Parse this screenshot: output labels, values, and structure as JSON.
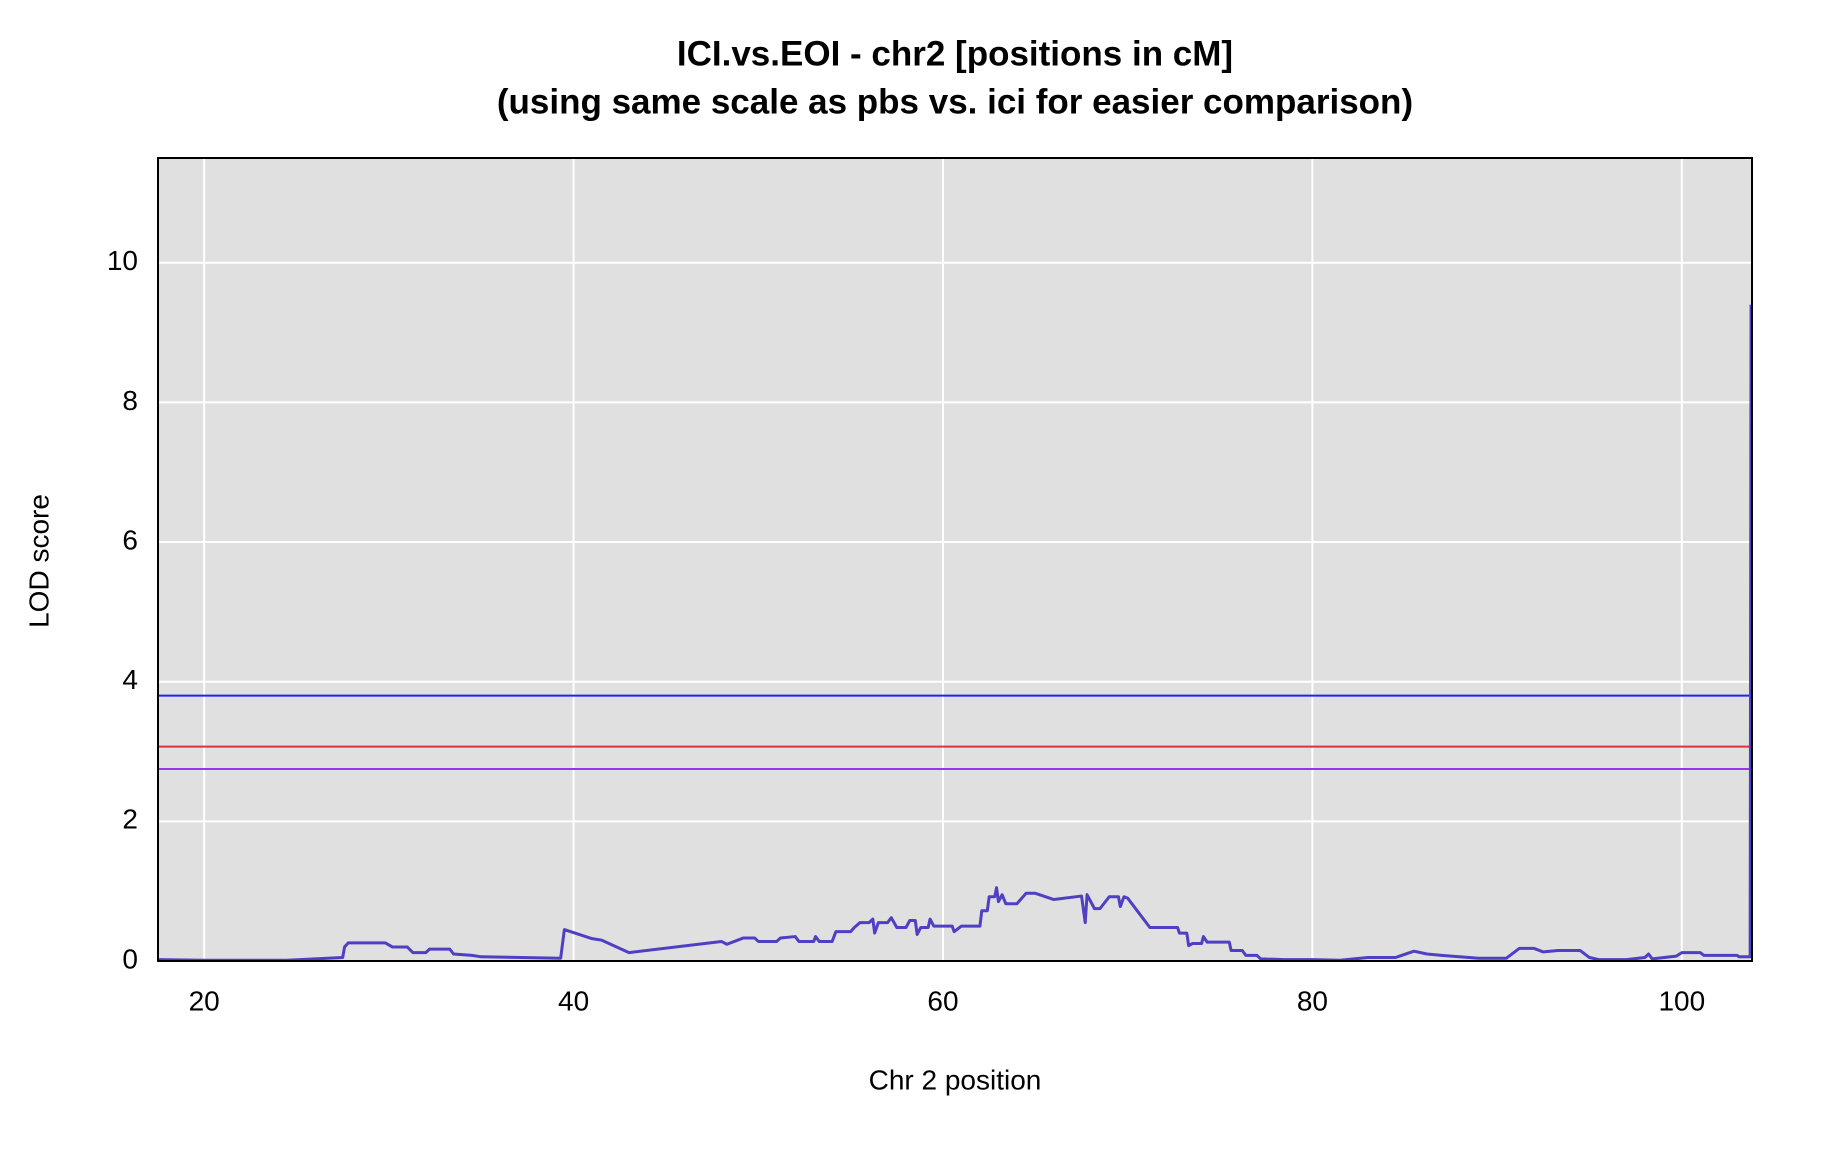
{
  "chart_data": {
    "type": "line",
    "title": "ICI.vs.EOI - chr2 [positions in cM]",
    "subtitle": "(using same scale as pbs  vs. ici for easier comparison)",
    "x_label": "Chr 2 position",
    "y_label": "LOD score",
    "xlim": [
      17.5,
      103.8
    ],
    "ylim": [
      0,
      11.5
    ],
    "xticks": [
      20,
      40,
      60,
      80,
      100
    ],
    "yticks": [
      0,
      2,
      4,
      6,
      8,
      10
    ],
    "grid": true,
    "background": "#e0e0e0",
    "thresholds": [
      {
        "value": 3.8,
        "color": "#2222ee"
      },
      {
        "value": 3.07,
        "color": "#e0303a"
      },
      {
        "value": 2.75,
        "color": "#9933ee"
      }
    ],
    "series": [
      {
        "color": "#4f3fc4",
        "x": [
          17.5,
          20,
          24.5,
          27.5,
          27.6,
          27.8,
          29.8,
          30.2,
          31,
          31.3,
          32,
          32.2,
          33.3,
          33.5,
          34.5,
          35,
          39.3,
          39.5,
          41,
          41.5,
          43,
          48,
          48.3,
          49.2,
          49.8,
          50,
          51,
          51.2,
          52,
          52.2,
          53,
          53.1,
          53.3,
          54,
          54.2,
          55,
          55.2,
          55.5,
          56,
          56.2,
          56.3,
          56.5,
          57,
          57.2,
          57.5,
          58,
          58.2,
          58.5,
          58.6,
          58.8,
          59.2,
          59.3,
          59.5,
          60.5,
          60.6,
          61,
          62,
          62.1,
          62.4,
          62.5,
          62.8,
          62.9,
          63,
          63.2,
          63.4,
          64,
          64.5,
          65,
          66,
          67.5,
          67.7,
          67.8,
          68.2,
          68.5,
          69,
          69.5,
          69.6,
          69.8,
          70,
          71.2,
          72.7,
          72.8,
          73.2,
          73.3,
          73.5,
          74,
          74.1,
          74.3,
          75.5,
          75.6,
          76.2,
          76.4,
          77,
          77.2,
          78.5,
          80,
          81.5,
          83,
          84.5,
          85.5,
          86.2,
          87,
          89,
          90.5,
          91.2,
          92,
          92.5,
          93.3,
          94.5,
          95,
          95.5,
          97,
          98,
          98.2,
          98.4,
          99.7,
          100,
          101,
          101.2,
          103,
          103.1,
          103.7,
          103.75
        ],
        "values": [
          0.02,
          0.01,
          0.01,
          0.05,
          0.2,
          0.26,
          0.26,
          0.2,
          0.2,
          0.12,
          0.12,
          0.17,
          0.17,
          0.1,
          0.08,
          0.06,
          0.04,
          0.45,
          0.32,
          0.3,
          0.12,
          0.28,
          0.24,
          0.33,
          0.33,
          0.28,
          0.28,
          0.33,
          0.35,
          0.28,
          0.28,
          0.35,
          0.28,
          0.28,
          0.42,
          0.42,
          0.48,
          0.55,
          0.55,
          0.6,
          0.4,
          0.55,
          0.55,
          0.62,
          0.48,
          0.48,
          0.58,
          0.58,
          0.38,
          0.48,
          0.48,
          0.6,
          0.5,
          0.5,
          0.42,
          0.5,
          0.5,
          0.72,
          0.72,
          0.92,
          0.92,
          1.05,
          0.85,
          0.95,
          0.82,
          0.82,
          0.97,
          0.97,
          0.88,
          0.93,
          0.55,
          0.95,
          0.75,
          0.75,
          0.92,
          0.92,
          0.78,
          0.92,
          0.9,
          0.48,
          0.48,
          0.4,
          0.4,
          0.22,
          0.25,
          0.25,
          0.35,
          0.27,
          0.27,
          0.15,
          0.15,
          0.08,
          0.08,
          0.03,
          0.02,
          0.02,
          0.01,
          0.05,
          0.05,
          0.14,
          0.1,
          0.08,
          0.04,
          0.04,
          0.18,
          0.18,
          0.13,
          0.15,
          0.15,
          0.05,
          0.02,
          0.02,
          0.05,
          0.1,
          0.03,
          0.07,
          0.12,
          0.12,
          0.08,
          0.08,
          0.06,
          0.06,
          9.4
        ]
      }
    ]
  }
}
